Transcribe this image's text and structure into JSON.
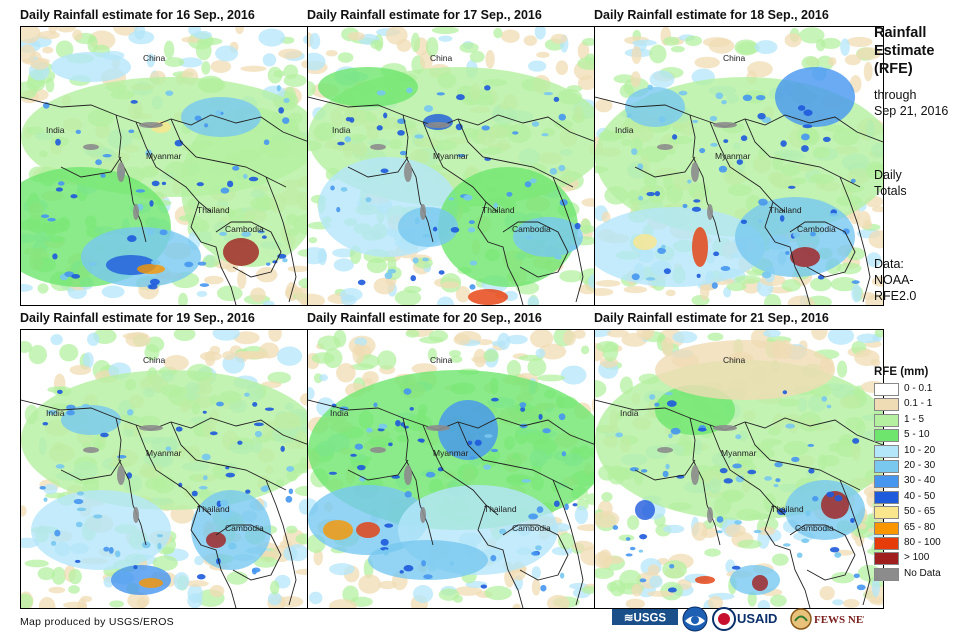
{
  "panels": [
    {
      "title": "Daily Rainfall estimate for 16 Sep., 2016"
    },
    {
      "title": "Daily Rainfall estimate for 17 Sep., 2016"
    },
    {
      "title": "Daily Rainfall estimate for 18 Sep., 2016"
    },
    {
      "title": "Daily Rainfall estimate for 19 Sep., 2016"
    },
    {
      "title": "Daily Rainfall estimate for 20 Sep., 2016"
    },
    {
      "title": "Daily Rainfall estimate for 21 Sep., 2016"
    }
  ],
  "map_labels": {
    "china": "China",
    "india": "India",
    "myanmar": "Myanmar",
    "thailand": "Thailand",
    "cambodia": "Cambodia"
  },
  "sidebar": {
    "title_lines": [
      "Rainfall",
      "Estimate",
      "(RFE)"
    ],
    "through_lines": [
      "through",
      "Sep 21, 2016"
    ],
    "daily_lines": [
      "Daily",
      "Totals"
    ],
    "data_lines": [
      "Data:",
      "NOAA-",
      "RFE2.0"
    ]
  },
  "legend": {
    "title": "RFE (mm)",
    "items": [
      {
        "label": "0 - 0.1",
        "color": "#ffffff"
      },
      {
        "label": "0.1 - 1",
        "color": "#f0dcb4"
      },
      {
        "label": "1 - 5",
        "color": "#b4f0a0"
      },
      {
        "label": "5 - 10",
        "color": "#6ee66e"
      },
      {
        "label": "10 - 20",
        "color": "#b4e6fa"
      },
      {
        "label": "20 - 30",
        "color": "#78c8f0"
      },
      {
        "label": "30 - 40",
        "color": "#4696f0"
      },
      {
        "label": "40 - 50",
        "color": "#1e5adc"
      },
      {
        "label": "50 - 65",
        "color": "#fae68c"
      },
      {
        "label": "65 - 80",
        "color": "#fa9600"
      },
      {
        "label": "80 - 100",
        "color": "#e63c0a"
      },
      {
        "label": "> 100",
        "color": "#a01e1e"
      },
      {
        "label": "No Data",
        "color": "#8c8c8c"
      }
    ]
  },
  "credit": "Map produced by USGS/EROS",
  "logos": {
    "usgs": "≋USGS",
    "usaid": "USAID",
    "fewsnet": "FEWS NET"
  }
}
